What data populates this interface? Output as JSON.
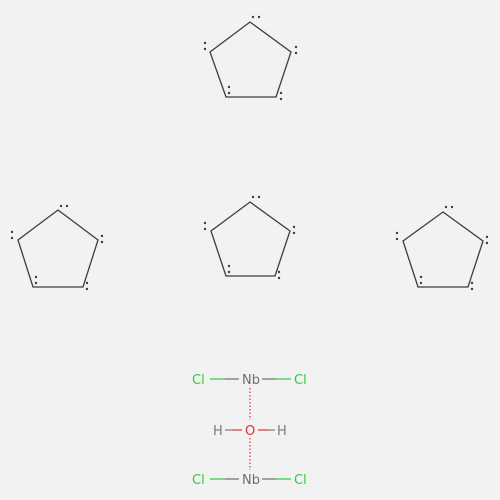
{
  "molecule": {
    "rings": [
      {
        "name": "cyclopentadienyl-ring-1"
      },
      {
        "name": "cyclopentadienyl-ring-2"
      },
      {
        "name": "cyclopentadienyl-ring-3"
      },
      {
        "name": "cyclopentadienyl-ring-4"
      }
    ],
    "atoms": {
      "cl": "Cl",
      "nb": "Nb",
      "o": "O",
      "h": "H"
    },
    "colors": {
      "background": "#f2f2f2",
      "bond": "#3d3d3d",
      "chlorine": "#2ecc40",
      "niobium": "#6e6e6e",
      "oxygen": "#e03030",
      "hydrogen": "#7a7a7a"
    }
  }
}
